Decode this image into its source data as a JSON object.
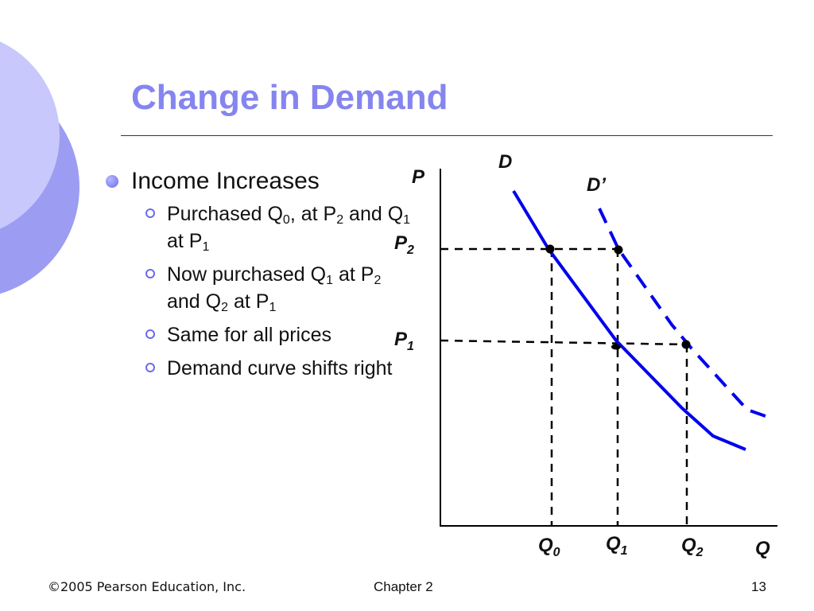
{
  "slide": {
    "title": "Change in Demand",
    "bullet": "Income Increases",
    "sub_bullets": [
      {
        "parts": [
          [
            "Purchased Q",
            ""
          ],
          [
            "0",
            "sub"
          ],
          [
            ", at P",
            ""
          ],
          [
            "2",
            "sub"
          ],
          [
            " and Q",
            ""
          ],
          [
            "1",
            "sub"
          ],
          [
            " at P",
            ""
          ],
          [
            "1",
            "sub"
          ]
        ]
      },
      {
        "parts": [
          [
            "Now purchased Q",
            ""
          ],
          [
            "1",
            "sub"
          ],
          [
            " at P",
            ""
          ],
          [
            "2",
            "sub"
          ],
          [
            " and Q",
            ""
          ],
          [
            "2",
            "sub"
          ],
          [
            " at P",
            ""
          ],
          [
            "1",
            "sub"
          ]
        ]
      },
      {
        "parts": [
          [
            "Same for all prices",
            ""
          ]
        ]
      },
      {
        "parts": [
          [
            "Demand curve shifts right",
            ""
          ]
        ]
      }
    ]
  },
  "diagram": {
    "y_axis_label": "P",
    "x_axis_label": "Q",
    "price_levels": [
      {
        "base": "P",
        "sub": "2"
      },
      {
        "base": "P",
        "sub": "1"
      }
    ],
    "quantity_levels": [
      {
        "base": "Q",
        "sub": "0"
      },
      {
        "base": "Q",
        "sub": "1"
      },
      {
        "base": "Q",
        "sub": "2"
      }
    ],
    "curve_original": "D",
    "curve_shifted": "D’",
    "colors": {
      "curve": "#0000ee",
      "guides": "#000000",
      "title": "#8585f0",
      "decor_light": "#c8c8fc",
      "decor_dark": "#9c9cf2"
    }
  },
  "footer": {
    "copyright": "©2005 Pearson Education, Inc.",
    "chapter": "Chapter 2",
    "page": "13"
  }
}
